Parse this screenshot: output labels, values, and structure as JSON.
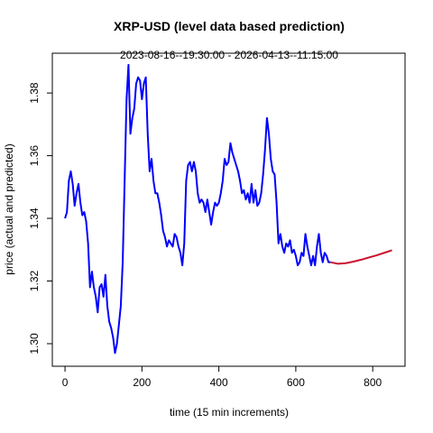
{
  "chart_data": {
    "type": "line",
    "title": "XRP-USD (level data based prediction)",
    "subtitle": "2023-08-16--19:30:00  -  2026-04-13--11:15:00",
    "x_label": "time (15 min increments)",
    "y_label": "price (actual and predicted)",
    "xlim": [
      -33,
      884
    ],
    "ylim": [
      1.2928,
      1.3927
    ],
    "xticks": [
      0,
      200,
      400,
      600,
      800
    ],
    "yticks": [
      {
        "value": 1.3,
        "label": "1.30"
      },
      {
        "value": 1.32,
        "label": "1.32"
      },
      {
        "value": 1.34,
        "label": "1.34"
      },
      {
        "value": 1.36,
        "label": "1.36"
      },
      {
        "value": 1.38,
        "label": "1.38"
      }
    ],
    "series": [
      {
        "color": "#0000ff",
        "x": [
          0,
          5,
          10,
          15,
          20,
          25,
          30,
          35,
          40,
          45,
          50,
          55,
          60,
          65,
          70,
          75,
          80,
          85,
          90,
          95,
          100,
          105,
          110,
          115,
          120,
          125,
          130,
          135,
          140,
          145,
          150,
          155,
          160,
          165,
          170,
          175,
          180,
          185,
          190,
          195,
          200,
          205,
          210,
          215,
          220,
          225,
          230,
          235,
          240,
          245,
          250,
          255,
          260,
          265,
          270,
          275,
          280,
          285,
          290,
          295,
          300,
          305,
          310,
          315,
          320,
          325,
          330,
          335,
          340,
          345,
          350,
          355,
          360,
          365,
          370,
          375,
          380,
          385,
          390,
          395,
          400,
          405,
          410,
          415,
          420,
          425,
          430,
          435,
          440,
          445,
          450,
          455,
          460,
          465,
          470,
          475,
          480,
          485,
          490,
          495,
          500,
          505,
          510,
          515,
          520,
          525,
          530,
          535,
          540,
          545,
          550,
          555,
          560,
          565,
          570,
          575,
          580,
          585,
          590,
          595,
          600,
          605,
          610,
          615,
          620,
          625,
          630,
          635,
          640,
          645,
          650,
          655,
          660,
          665,
          670,
          675,
          680,
          685,
          690
        ],
        "values": [
          1.34,
          1.342,
          1.352,
          1.355,
          1.351,
          1.344,
          1.348,
          1.351,
          1.345,
          1.341,
          1.342,
          1.339,
          1.332,
          1.318,
          1.323,
          1.318,
          1.315,
          1.31,
          1.318,
          1.319,
          1.315,
          1.322,
          1.312,
          1.307,
          1.305,
          1.302,
          1.297,
          1.3,
          1.306,
          1.312,
          1.326,
          1.352,
          1.378,
          1.389,
          1.367,
          1.372,
          1.375,
          1.383,
          1.385,
          1.384,
          1.378,
          1.383,
          1.385,
          1.367,
          1.355,
          1.359,
          1.352,
          1.348,
          1.348,
          1.345,
          1.341,
          1.336,
          1.334,
          1.331,
          1.333,
          1.332,
          1.331,
          1.335,
          1.334,
          1.331,
          1.329,
          1.325,
          1.332,
          1.352,
          1.357,
          1.358,
          1.355,
          1.358,
          1.355,
          1.348,
          1.345,
          1.346,
          1.345,
          1.342,
          1.346,
          1.342,
          1.338,
          1.342,
          1.345,
          1.344,
          1.345,
          1.348,
          1.352,
          1.359,
          1.357,
          1.358,
          1.364,
          1.361,
          1.359,
          1.357,
          1.355,
          1.352,
          1.348,
          1.349,
          1.346,
          1.348,
          1.345,
          1.351,
          1.345,
          1.349,
          1.344,
          1.345,
          1.348,
          1.354,
          1.362,
          1.372,
          1.367,
          1.359,
          1.355,
          1.354,
          1.345,
          1.332,
          1.335,
          1.331,
          1.329,
          1.332,
          1.331,
          1.333,
          1.329,
          1.33,
          1.328,
          1.325,
          1.326,
          1.329,
          1.328,
          1.335,
          1.331,
          1.328,
          1.325,
          1.328,
          1.325,
          1.331,
          1.335,
          1.329,
          1.326,
          1.329,
          1.328,
          1.326,
          1.326
        ]
      },
      {
        "color": "#c8102e",
        "x": [
          690,
          710,
          730,
          750,
          770,
          790,
          810,
          830,
          850
        ],
        "values": [
          1.326,
          1.3255,
          1.3257,
          1.3262,
          1.3268,
          1.3275,
          1.3282,
          1.329,
          1.3298
        ]
      }
    ]
  }
}
